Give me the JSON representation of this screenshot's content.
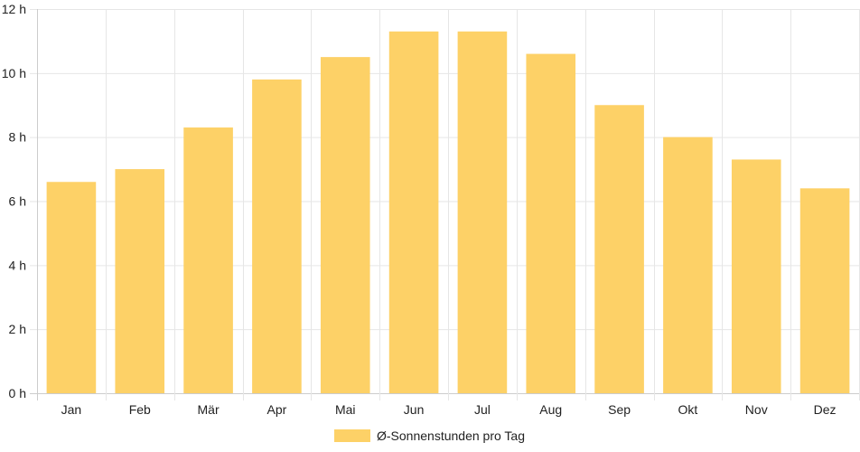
{
  "chart_data": {
    "type": "bar",
    "categories": [
      "Jan",
      "Feb",
      "Mär",
      "Apr",
      "Mai",
      "Jun",
      "Jul",
      "Aug",
      "Sep",
      "Okt",
      "Nov",
      "Dez"
    ],
    "series": [
      {
        "name": "Ø-Sonnenstunden pro Tag",
        "values": [
          6.6,
          7.0,
          8.3,
          9.8,
          10.5,
          11.3,
          11.3,
          10.6,
          9.0,
          8.0,
          7.3,
          6.4
        ]
      }
    ],
    "y_ticks": [
      "0 h",
      "2 h",
      "4 h",
      "6 h",
      "8 h",
      "10 h",
      "12 h"
    ],
    "ylim": [
      0,
      12
    ],
    "grid": true,
    "legend_position": "bottom-center",
    "bar_color": "#fdd167"
  }
}
